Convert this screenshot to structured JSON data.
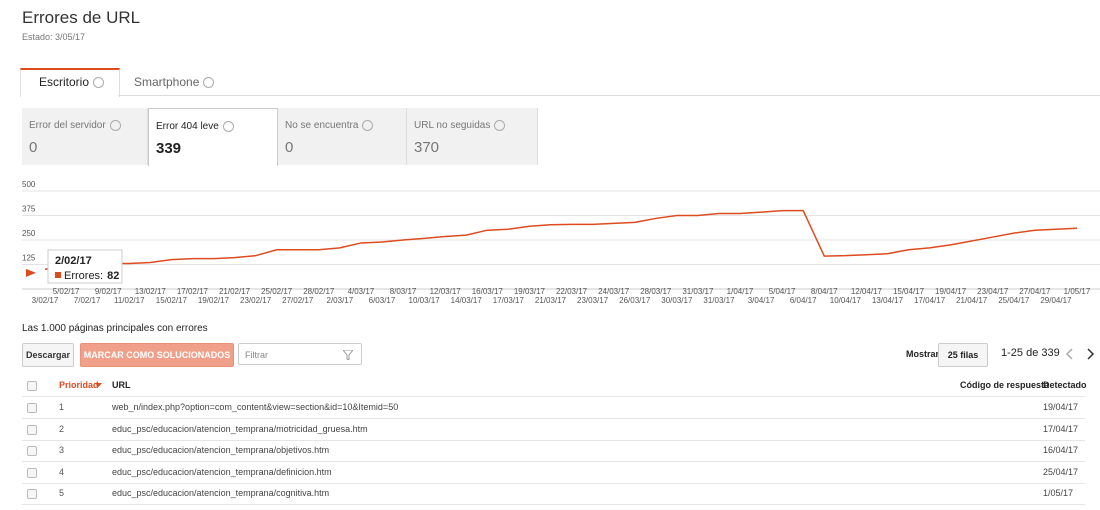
{
  "header": {
    "title": "Errores de URL",
    "status": "Estado: 3/05/17"
  },
  "tabs": [
    "Escritorio",
    "Smartphone"
  ],
  "metrics": [
    {
      "label": "Error del servidor",
      "value": 0
    },
    {
      "label": "Error 404 leve",
      "value": 339
    },
    {
      "label": "No se encuentra",
      "value": 0
    },
    {
      "label": "URL no seguidas",
      "value": 370
    }
  ],
  "chart_data": {
    "type": "line",
    "color": "#dd4b1f",
    "categories": [
      "3/02/17",
      "5/02/17",
      "7/02/17",
      "9/02/17",
      "11/02/17",
      "13/02/17",
      "15/02/17",
      "17/02/17",
      "19/02/17",
      "21/02/17",
      "23/02/17",
      "25/02/17",
      "27/02/17",
      "28/02/17",
      "2/03/17",
      "4/03/17",
      "6/03/17",
      "8/03/17",
      "10/03/17",
      "12/03/17",
      "14/03/17",
      "16/03/17",
      "17/03/17",
      "19/03/17",
      "21/03/17",
      "22/03/17",
      "23/03/17",
      "24/03/17",
      "26/03/17",
      "28/03/17",
      "30/03/17",
      "31/03/17",
      "31/03/17",
      "1/04/17",
      "3/04/17",
      "5/04/17",
      "6/04/17",
      "8/04/17",
      "10/04/17",
      "12/04/17",
      "13/04/17",
      "15/04/17",
      "17/04/17",
      "19/04/17",
      "21/04/17",
      "23/04/17",
      "25/04/17",
      "27/04/17",
      "29/04/17",
      "1/05/17"
    ],
    "values": [
      100,
      120,
      130,
      130,
      130,
      135,
      150,
      155,
      155,
      160,
      170,
      200,
      200,
      200,
      210,
      235,
      240,
      250,
      258,
      268,
      275,
      300,
      305,
      320,
      328,
      330,
      330,
      335,
      340,
      360,
      375,
      375,
      385,
      385,
      392,
      400,
      400,
      168,
      170,
      175,
      180,
      200,
      210,
      225,
      245,
      265,
      285,
      300,
      305,
      310
    ],
    "ylim": [
      0,
      500
    ],
    "yticks": [
      125,
      250,
      375,
      500
    ],
    "grid": true,
    "tooltip": {
      "date": "2/02/17",
      "label": "Errores:",
      "value": 82
    }
  },
  "table": {
    "caption": "Las 1.000 páginas principales con errores",
    "download": "Descargar",
    "mark_fixed": "MARCAR COMO SOLUCIONADOS (0)",
    "filter_placeholder": "Filtrar",
    "show_label": "Mostrar",
    "rows_per_page": "25 filas",
    "range": "1-25 de 339",
    "columns": [
      "Prioridad",
      "URL",
      "Código de respuesta",
      "Detectado"
    ],
    "rows": [
      {
        "priority": 1,
        "url": "web_n/index.php?option=com_content&view=section&id=10&Itemid=50",
        "detected": "19/04/17"
      },
      {
        "priority": 2,
        "url": "educ_psc/educacion/atencion_temprana/motricidad_gruesa.htm",
        "detected": "17/04/17"
      },
      {
        "priority": 3,
        "url": "educ_psc/educacion/atencion_temprana/objetivos.htm",
        "detected": "16/04/17"
      },
      {
        "priority": 4,
        "url": "educ_psc/educacion/atencion_temprana/definicion.htm",
        "detected": "25/04/17"
      },
      {
        "priority": 5,
        "url": "educ_psc/educacion/atencion_temprana/cognitiva.htm",
        "detected": "1/05/17"
      }
    ]
  }
}
